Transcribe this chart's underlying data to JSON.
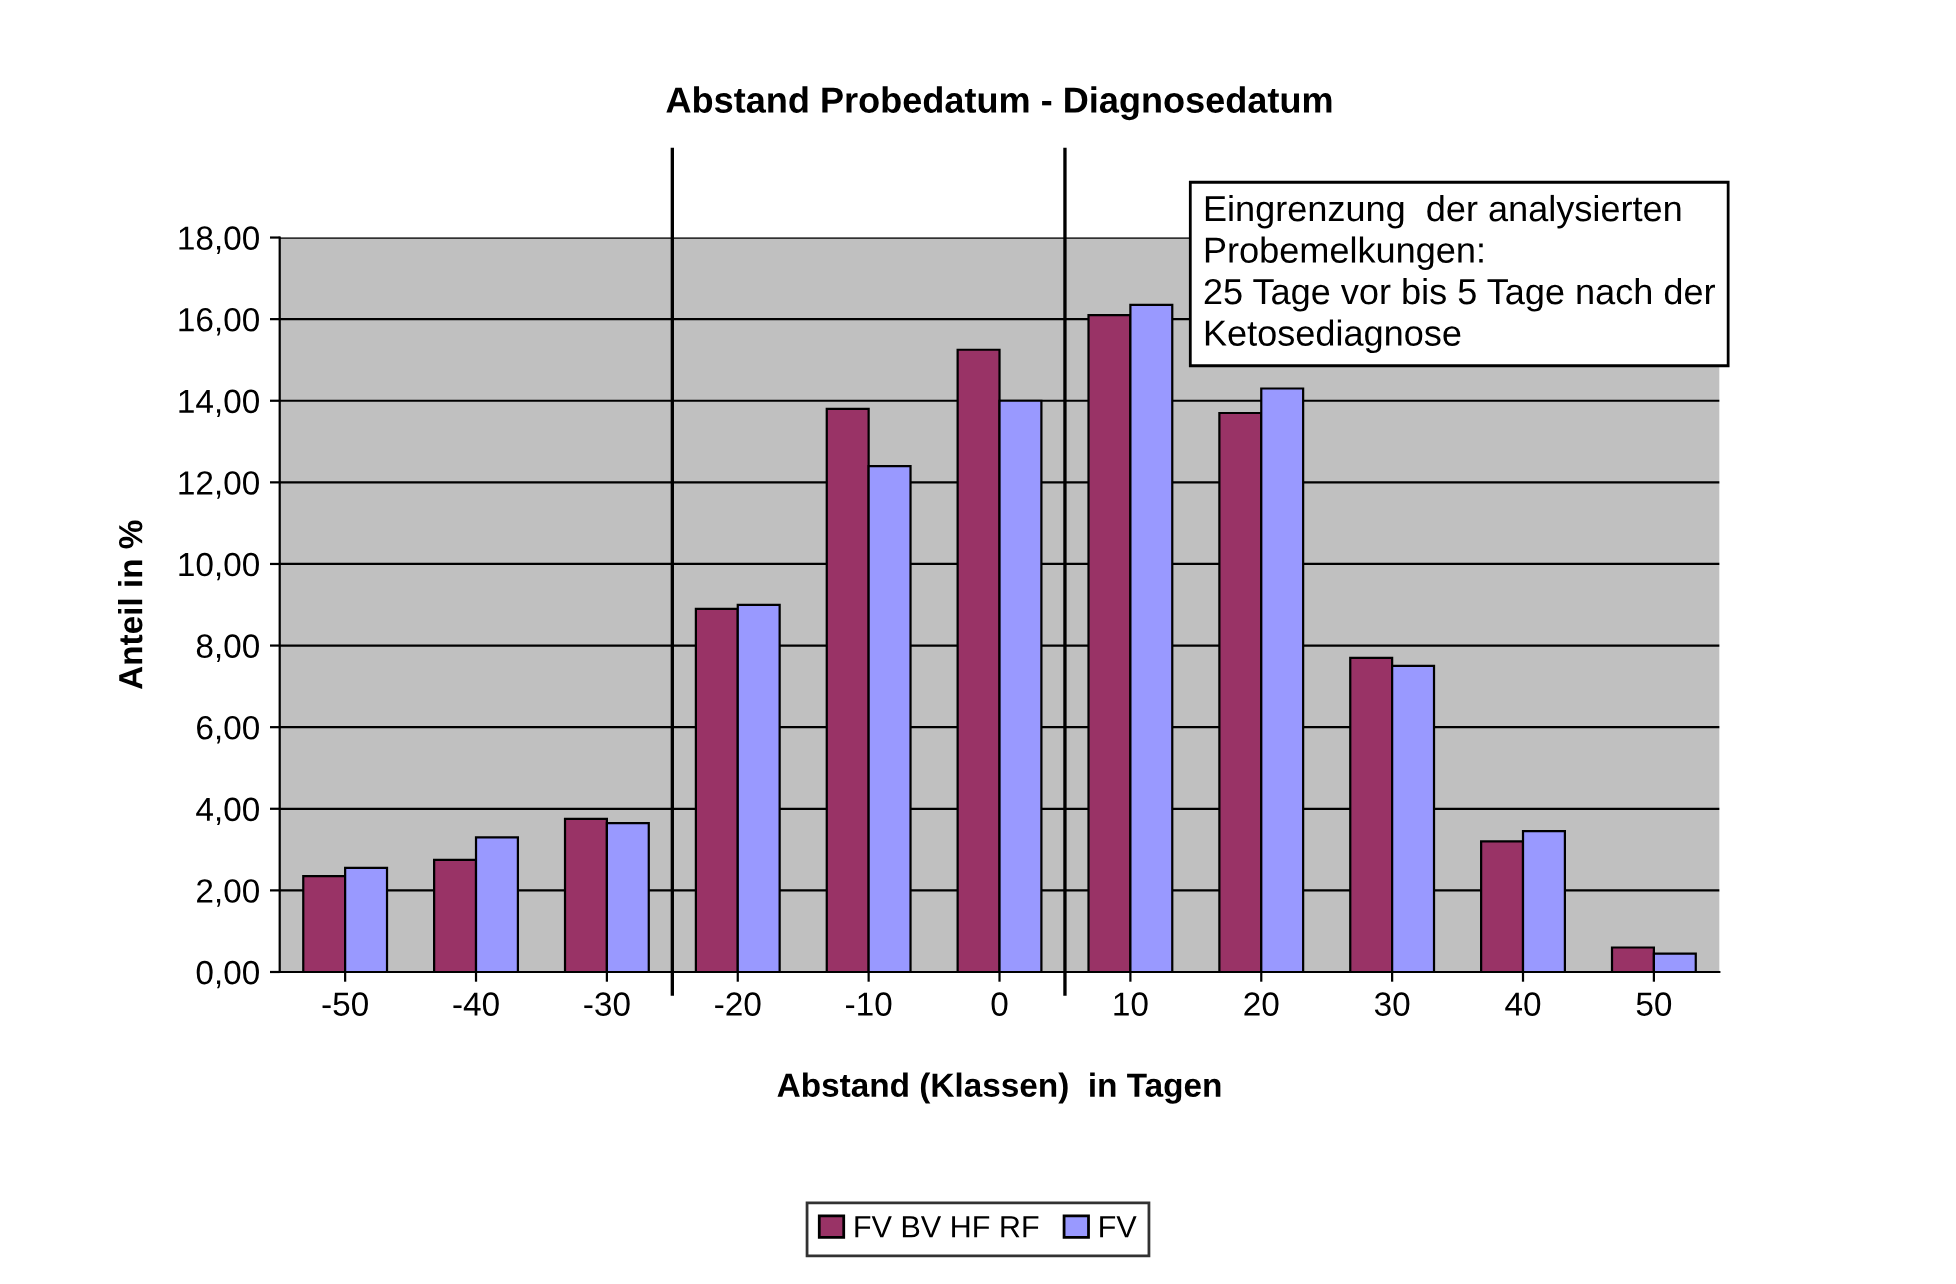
{
  "chart_data": {
    "type": "bar",
    "title": "Abstand Probedatum - Diagnosedatum",
    "xlabel": "Abstand (Klassen)  in Tagen",
    "ylabel": "Anteil in %",
    "x": [
      -50,
      -40,
      -30,
      -20,
      -10,
      0,
      10,
      20,
      30,
      40,
      50
    ],
    "series": [
      {
        "name": "FV BV HF RF",
        "color": "#993366",
        "values": [
          2.35,
          2.75,
          3.75,
          8.9,
          13.8,
          15.25,
          16.1,
          13.7,
          7.7,
          3.2,
          0.6
        ]
      },
      {
        "name": "FV",
        "color": "#9999ff",
        "values": [
          2.55,
          3.3,
          3.65,
          9.0,
          12.4,
          14.0,
          16.35,
          14.3,
          7.5,
          3.45,
          0.45
        ]
      }
    ],
    "xlim": [
      -55,
      55
    ],
    "xticks": [
      -50,
      -40,
      -30,
      -20,
      -10,
      0,
      10,
      20,
      30,
      40,
      50
    ],
    "ylim": [
      0,
      18
    ],
    "yticks": [
      {
        "value": 0,
        "label": "0,00"
      },
      {
        "value": 2,
        "label": "2,00"
      },
      {
        "value": 4,
        "label": "4,00"
      },
      {
        "value": 6,
        "label": "6,00"
      },
      {
        "value": 8,
        "label": "8,00"
      },
      {
        "value": 10,
        "label": "10,00"
      },
      {
        "value": 12,
        "label": "12,00"
      },
      {
        "value": 14,
        "label": "14,00"
      },
      {
        "value": 16,
        "label": "16,00"
      },
      {
        "value": 18,
        "label": "18,00"
      }
    ],
    "grid": "y",
    "legend": "bottom",
    "ref_lines": [
      {
        "axis": "x",
        "value": -25,
        "color": "#000000"
      },
      {
        "axis": "x",
        "value": 5,
        "color": "#000000"
      }
    ],
    "annotations": [
      "Eingrenzung  der analysierten\nProbemelkungen:\n25 Tage vor bis 5 Tage nach der\nKetosediagnose"
    ]
  }
}
